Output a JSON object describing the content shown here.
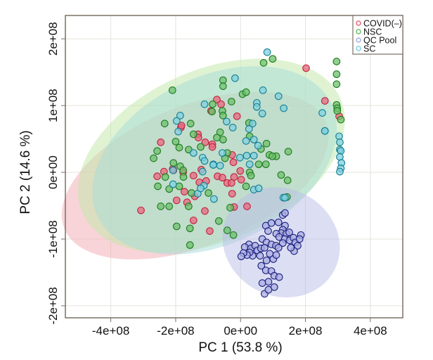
{
  "chart_data": {
    "type": "scatter",
    "title": "",
    "xlabel": "PC 1 (53.8 %)",
    "ylabel": "PC 2 (14.6 %)",
    "value_scale": 100000000,
    "value_scale_note": "x/y values below are in units of 1e8",
    "xlim": [
      -5.4,
      5.0
    ],
    "ylim": [
      -2.18,
      2.35
    ],
    "x_ticks": [
      -4,
      -2,
      0,
      2,
      4
    ],
    "x_tick_labels": [
      "-4e+08",
      "-2e+08",
      "0e+00",
      "2e+08",
      "4e+08"
    ],
    "y_ticks": [
      -2,
      -1,
      0,
      1,
      2
    ],
    "y_tick_labels": [
      "-2e+08",
      "-1e+08",
      "0e+00",
      "1e+08",
      "2e+08"
    ],
    "grid": true,
    "legend": {
      "position": "top-right",
      "entries": [
        "COVID(–)",
        "NSC",
        "QC Pool",
        "SC"
      ]
    },
    "series": [
      {
        "name": "COVID(–)",
        "color": "#e8677f",
        "stroke": "#c0243f",
        "ellipse": {
          "cx": -1.4,
          "cy": -0.05,
          "rx": 4.35,
          "ry": 1.05,
          "angle_deg": -22
        },
        "points": [
          [
            2.02,
            1.56
          ],
          [
            -0.73,
            1.09
          ],
          [
            -0.6,
            1.02
          ],
          [
            -0.91,
            0.92
          ],
          [
            -0.11,
            0.84
          ],
          [
            2.6,
            1.07
          ],
          [
            3.04,
            0.84
          ],
          [
            -1.84,
            0.67
          ],
          [
            -1.82,
            0.7
          ],
          [
            -1.31,
            0.57
          ],
          [
            -1.3,
            0.52
          ],
          [
            -1.09,
            0.45
          ],
          [
            -0.87,
            0.42
          ],
          [
            -2.46,
            0.45
          ],
          [
            -0.87,
            0.38
          ],
          [
            -2.07,
            0.03
          ],
          [
            -2.09,
            0.05
          ],
          [
            -2.36,
            0.01
          ],
          [
            -2.57,
            -0.06
          ],
          [
            -1.77,
            0.0
          ],
          [
            -1.45,
            -0.05
          ],
          [
            -1.21,
            0.04
          ],
          [
            -0.71,
            -0.06
          ],
          [
            -0.56,
            -0.08
          ],
          [
            -0.2,
            -0.07
          ],
          [
            0.02,
            -0.11
          ],
          [
            -1.27,
            -0.15
          ],
          [
            -1.06,
            -0.13
          ],
          [
            -0.41,
            -0.16
          ],
          [
            -0.28,
            -0.16
          ],
          [
            -0.26,
            0.26
          ],
          [
            -0.22,
            0.15
          ],
          [
            -0.01,
            0.02
          ],
          [
            -1.73,
            -0.29
          ],
          [
            -1.41,
            -0.36
          ],
          [
            -0.26,
            -0.32
          ],
          [
            -1.97,
            -0.42
          ],
          [
            -1.65,
            -0.45
          ],
          [
            -3.07,
            -0.57
          ],
          [
            -1.1,
            -0.58
          ],
          [
            -0.2,
            -0.52
          ],
          [
            0.2,
            -0.51
          ],
          [
            -1.45,
            -0.72
          ],
          [
            -0.95,
            -0.88
          ]
        ]
      },
      {
        "name": "NSC",
        "color": "#6cc06c",
        "stroke": "#1f7a1f",
        "ellipse": {
          "cx": -0.9,
          "cy": 0.25,
          "rx": 4.35,
          "ry": 1.28,
          "angle_deg": -24
        },
        "points": [
          [
            0.99,
            1.7
          ],
          [
            0.71,
            1.64
          ],
          [
            2.96,
            1.66
          ],
          [
            2.96,
            1.47
          ],
          [
            2.96,
            1.32
          ],
          [
            -0.54,
            1.38
          ],
          [
            -0.54,
            1.29
          ],
          [
            -2.1,
            1.23
          ],
          [
            0.06,
            1.17
          ],
          [
            0.17,
            1.2
          ],
          [
            -0.86,
            1.02
          ],
          [
            -0.28,
            1.06
          ],
          [
            -0.88,
            0.91
          ],
          [
            -0.56,
            0.92
          ],
          [
            -0.54,
            0.85
          ],
          [
            2.96,
            1.01
          ],
          [
            2.98,
            0.96
          ],
          [
            2.98,
            0.92
          ],
          [
            3.09,
            0.79
          ],
          [
            -2.34,
            0.73
          ],
          [
            -1.54,
            0.73
          ],
          [
            -0.63,
            0.6
          ],
          [
            -0.54,
            0.49
          ],
          [
            -0.73,
            0.52
          ],
          [
            -1.45,
            0.57
          ],
          [
            -1.23,
            0.38
          ],
          [
            -2.0,
            0.46
          ],
          [
            -1.89,
            0.37
          ],
          [
            -1.6,
            0.34
          ],
          [
            0.26,
            0.74
          ],
          [
            0.28,
            0.54
          ],
          [
            0.8,
            0.43
          ],
          [
            0.63,
            0.35
          ],
          [
            -2.57,
            0.32
          ],
          [
            -2.68,
            0.21
          ],
          [
            1.47,
            0.31
          ],
          [
            -0.41,
            0.29
          ],
          [
            -0.48,
            0.21
          ],
          [
            0.89,
            0.26
          ],
          [
            1.1,
            0.24
          ],
          [
            0.98,
            0.24
          ],
          [
            0.78,
            0.12
          ],
          [
            0.56,
            0.12
          ],
          [
            0.28,
            0.0
          ],
          [
            0.32,
            -0.05
          ],
          [
            -2.07,
            0.14
          ],
          [
            -1.86,
            0.09
          ],
          [
            -1.77,
            0.03
          ],
          [
            -2.32,
            -0.07
          ],
          [
            -1.76,
            -0.07
          ],
          [
            1.25,
            -0.04
          ],
          [
            1.45,
            -0.12
          ],
          [
            -2.55,
            -0.21
          ],
          [
            -2.2,
            -0.25
          ],
          [
            -1.89,
            -0.21
          ],
          [
            0.17,
            -0.21
          ],
          [
            -1.51,
            -0.31
          ],
          [
            -0.99,
            -0.31
          ],
          [
            1.43,
            -0.37
          ],
          [
            -1.6,
            -0.51
          ],
          [
            -2.46,
            -0.51
          ],
          [
            -2.2,
            -0.51
          ],
          [
            -0.32,
            -0.53
          ],
          [
            -0.67,
            -0.73
          ],
          [
            -1.97,
            -0.81
          ],
          [
            -1.56,
            -0.84
          ],
          [
            -0.41,
            -0.87
          ],
          [
            -0.22,
            -0.94
          ],
          [
            -1.56,
            -1.09
          ]
        ]
      },
      {
        "name": "QC Pool",
        "color": "#a9aee2",
        "stroke": "#1c1f7e",
        "ellipse": {
          "cx": 1.25,
          "cy": -1.05,
          "rx": 1.65,
          "ry": 0.9,
          "angle_deg": -62
        },
        "points": [
          [
            1.3,
            -0.64
          ],
          [
            1.37,
            -0.61
          ],
          [
            0.78,
            -0.8
          ],
          [
            0.95,
            -0.76
          ],
          [
            1.17,
            -0.75
          ],
          [
            1.37,
            -0.8
          ],
          [
            1.3,
            -0.86
          ],
          [
            1.25,
            -0.91
          ],
          [
            1.41,
            -0.92
          ],
          [
            1.5,
            -0.9
          ],
          [
            0.85,
            -0.88
          ],
          [
            1.1,
            -0.92
          ],
          [
            1.19,
            -0.97
          ],
          [
            1.36,
            -1.0
          ],
          [
            1.3,
            -1.06
          ],
          [
            1.51,
            -1.02
          ],
          [
            1.63,
            -0.98
          ],
          [
            1.69,
            -1.05
          ],
          [
            1.86,
            -0.94
          ],
          [
            1.82,
            -1.0
          ],
          [
            1.76,
            -1.1
          ],
          [
            1.65,
            -1.18
          ],
          [
            1.55,
            -1.13
          ],
          [
            0.67,
            -1.0
          ],
          [
            0.8,
            -1.05
          ],
          [
            0.95,
            -1.08
          ],
          [
            1.09,
            -1.1
          ],
          [
            1.17,
            -1.13
          ],
          [
            0.26,
            -1.08
          ],
          [
            0.13,
            -1.12
          ],
          [
            0.32,
            -1.14
          ],
          [
            0.45,
            -1.1
          ],
          [
            0.52,
            -1.17
          ],
          [
            0.63,
            -1.14
          ],
          [
            0.74,
            -1.13
          ],
          [
            0.6,
            -1.25
          ],
          [
            0.37,
            -1.25
          ],
          [
            0.28,
            -1.2
          ],
          [
            0.2,
            -1.24
          ],
          [
            0.09,
            -1.21
          ],
          [
            0.02,
            -1.26
          ],
          [
            0.9,
            -1.22
          ],
          [
            1.01,
            -1.3
          ],
          [
            1.1,
            -1.24
          ],
          [
            0.8,
            -1.32
          ],
          [
            0.64,
            -1.4
          ],
          [
            0.78,
            -1.47
          ],
          [
            0.95,
            -1.48
          ],
          [
            1.04,
            -1.55
          ],
          [
            1.19,
            -1.57
          ],
          [
            0.86,
            -1.64
          ],
          [
            0.67,
            -1.66
          ],
          [
            1.04,
            -1.72
          ],
          [
            0.74,
            -1.82
          ],
          [
            0.86,
            -1.76
          ]
        ]
      },
      {
        "name": "SC",
        "color": "#7fd0df",
        "stroke": "#147e92",
        "ellipse": {
          "cx": -0.8,
          "cy": 0.18,
          "rx": 4.0,
          "ry": 1.25,
          "angle_deg": -26
        },
        "points": [
          [
            0.82,
            1.8
          ],
          [
            -0.17,
            1.41
          ],
          [
            0.69,
            1.23
          ],
          [
            1.17,
            1.14
          ],
          [
            1.33,
            0.96
          ],
          [
            0.5,
            1.04
          ],
          [
            0.5,
            0.98
          ],
          [
            0.67,
            0.88
          ],
          [
            -1.11,
            1.02
          ],
          [
            -0.43,
            0.76
          ],
          [
            2.52,
            0.89
          ],
          [
            2.6,
            0.62
          ],
          [
            2.6,
            0.62
          ],
          [
            3.04,
            0.54
          ],
          [
            3.06,
            0.45
          ],
          [
            3.06,
            0.34
          ],
          [
            3.09,
            0.32
          ],
          [
            3.06,
            0.23
          ],
          [
            3.11,
            0.14
          ],
          [
            3.09,
            0.06
          ],
          [
            3.06,
            0.01
          ],
          [
            -1.86,
            0.85
          ],
          [
            -1.97,
            0.77
          ],
          [
            -1.92,
            0.61
          ],
          [
            -0.24,
            0.67
          ],
          [
            0.37,
            0.73
          ],
          [
            0.26,
            0.65
          ],
          [
            0.17,
            0.47
          ],
          [
            0.41,
            0.49
          ],
          [
            0.54,
            0.4
          ],
          [
            -1.45,
            0.29
          ],
          [
            -1.17,
            0.22
          ],
          [
            -1.11,
            0.17
          ],
          [
            -0.84,
            0.12
          ],
          [
            -0.56,
            0.29
          ],
          [
            -0.02,
            0.22
          ],
          [
            0.19,
            0.25
          ],
          [
            0.41,
            0.25
          ],
          [
            -1.17,
            0.01
          ],
          [
            -0.84,
            0.11
          ],
          [
            -0.63,
            0.1
          ],
          [
            0.28,
            0.12
          ],
          [
            -2.08,
            0.03
          ],
          [
            -2.08,
            -0.18
          ],
          [
            -1.13,
            -0.2
          ],
          [
            0.41,
            -0.26
          ],
          [
            0.56,
            -0.24
          ],
          [
            -1.32,
            -0.32
          ],
          [
            -1.23,
            -0.24
          ],
          [
            -0.82,
            -0.4
          ],
          [
            1.32,
            -0.38
          ],
          [
            1.37,
            -0.38
          ]
        ]
      }
    ]
  }
}
